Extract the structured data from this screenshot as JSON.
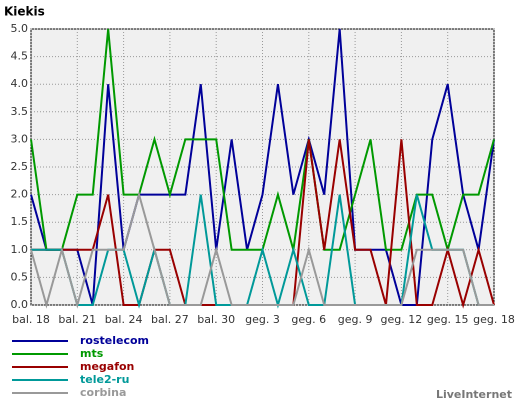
{
  "chart_data": {
    "type": "line",
    "title": "Kiekis",
    "watermark": "LiveInternet",
    "categories": [
      "bal. 18",
      null,
      null,
      "bal. 21",
      null,
      null,
      "bal. 24",
      null,
      null,
      "bal. 27",
      null,
      null,
      "bal. 30",
      null,
      null,
      "geg. 3",
      null,
      null,
      "geg. 6",
      null,
      null,
      "geg. 9",
      null,
      null,
      "geg. 12",
      null,
      null,
      "geg. 15",
      null,
      null,
      "geg. 18"
    ],
    "ylim": [
      0,
      5
    ],
    "yticks": [
      {
        "value": 0,
        "label": "0.0"
      },
      {
        "value": 0.5,
        "label": "0.5"
      },
      {
        "value": 1,
        "label": "1.0"
      },
      {
        "value": 1.5,
        "label": "1.5"
      },
      {
        "value": 2,
        "label": "2.0"
      },
      {
        "value": 2.5,
        "label": "2.5"
      },
      {
        "value": 3,
        "label": "3.0"
      },
      {
        "value": 3.5,
        "label": "3.5"
      },
      {
        "value": 4,
        "label": "4.0"
      },
      {
        "value": 4.5,
        "label": "4.5"
      },
      {
        "value": 5,
        "label": "5.0"
      }
    ],
    "grid": true,
    "series": [
      {
        "name": "rostelecom",
        "color": "#000099",
        "values": [
          2,
          1,
          1,
          1,
          0,
          4,
          1,
          2,
          2,
          2,
          2,
          4,
          1,
          3,
          1,
          2,
          4,
          2,
          3,
          2,
          5,
          1,
          1,
          1,
          0,
          0,
          3,
          4,
          2,
          1,
          3
        ]
      },
      {
        "name": "mts",
        "color": "#009900",
        "values": [
          3,
          1,
          1,
          2,
          2,
          5,
          2,
          2,
          3,
          2,
          3,
          3,
          3,
          1,
          1,
          1,
          2,
          1,
          3,
          1,
          1,
          2,
          3,
          1,
          1,
          2,
          2,
          1,
          2,
          2,
          3
        ]
      },
      {
        "name": "megafon",
        "color": "#990000",
        "values": [
          1,
          1,
          1,
          1,
          1,
          2,
          0,
          0,
          1,
          1,
          0,
          0,
          0,
          0,
          0,
          0,
          0,
          0,
          3,
          1,
          3,
          1,
          1,
          0,
          3,
          0,
          0,
          1,
          0,
          1,
          0
        ]
      },
      {
        "name": "tele2-ru",
        "color": "#009999",
        "values": [
          1,
          1,
          1,
          0,
          0,
          1,
          1,
          0,
          1,
          0,
          0,
          2,
          0,
          0,
          0,
          1,
          0,
          1,
          0,
          0,
          2,
          0,
          0,
          0,
          0,
          2,
          1,
          1,
          1,
          0,
          0
        ]
      },
      {
        "name": "corbina",
        "color": "#999999",
        "values": [
          1,
          0,
          1,
          0,
          1,
          1,
          1,
          2,
          1,
          0,
          0,
          0,
          1,
          0,
          0,
          0,
          0,
          0,
          1,
          0,
          0,
          0,
          0,
          0,
          0,
          1,
          1,
          1,
          1,
          0,
          0
        ]
      }
    ]
  }
}
